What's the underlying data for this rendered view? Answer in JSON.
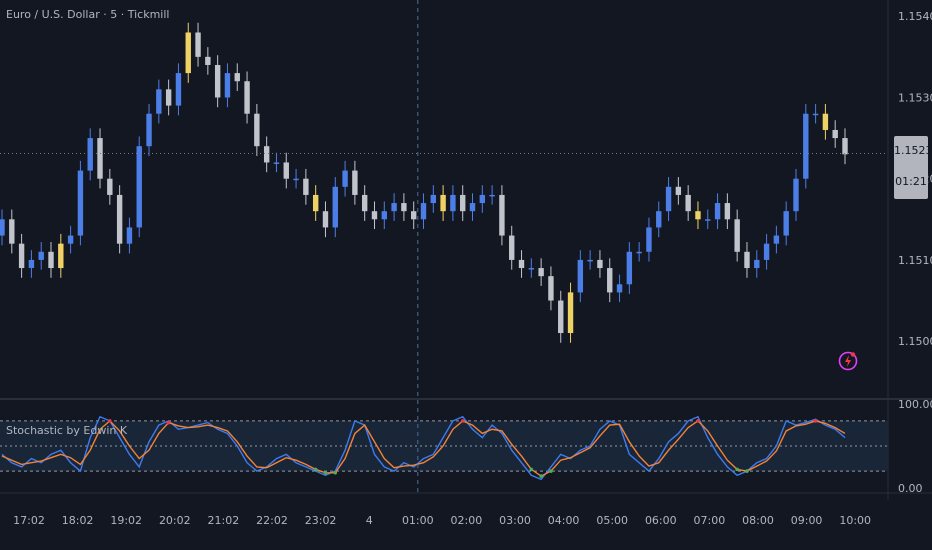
{
  "header": {
    "symbol_title": "Euro / U.S. Dollar · 5 · Tickmill"
  },
  "indicator": {
    "title": "Stochastic by Edwin K"
  },
  "last_price": {
    "value": "1.15231",
    "countdown": "01:21"
  },
  "colors": {
    "background": "#131722",
    "candle_up": "#4c7ee8",
    "candle_down": "#c2c4cc",
    "candle_highlight": "#f0d264",
    "stoch_k": "#3d7bf0",
    "stoch_d": "#f58235",
    "stoch_overbought": "#f23645",
    "stoch_oversold": "#4caf50",
    "band_fill": "#1c2b3f",
    "alert": "#e040fb"
  },
  "chart_data": [
    {
      "type": "candlestick",
      "title": "Euro / U.S. Dollar · 5 · Tickmill",
      "y_ticks": [
        "1.15400",
        "1.15300",
        "1.15200",
        "1.15100",
        "1.15000"
      ],
      "ylim": [
        1.1493,
        1.1542
      ],
      "x_ticks": [
        "17:02",
        "18:02",
        "19:02",
        "20:02",
        "21:02",
        "22:02",
        "23:02",
        "4",
        "01:00",
        "02:00",
        "03:00",
        "04:00",
        "05:00",
        "06:00",
        "07:00",
        "08:00",
        "09:00",
        "10:00"
      ],
      "close_series": [
        1.1515,
        1.1512,
        1.1509,
        1.151,
        1.1511,
        1.1509,
        1.1512,
        1.1513,
        1.1521,
        1.1525,
        1.152,
        1.1518,
        1.1512,
        1.1514,
        1.1524,
        1.1528,
        1.1531,
        1.1529,
        1.1533,
        1.1538,
        1.1535,
        1.1534,
        1.153,
        1.1533,
        1.1532,
        1.1528,
        1.1524,
        1.1522,
        1.1522,
        1.152,
        1.152,
        1.1518,
        1.1516,
        1.1514,
        1.1519,
        1.1521,
        1.1518,
        1.1516,
        1.1515,
        1.1516,
        1.1517,
        1.1516,
        1.1515,
        1.1517,
        1.1518,
        1.1516,
        1.1518,
        1.1516,
        1.1517,
        1.1518,
        1.1518,
        1.1513,
        1.151,
        1.1509,
        1.1509,
        1.1508,
        1.1505,
        1.1501,
        1.1506,
        1.151,
        1.151,
        1.1509,
        1.1506,
        1.1507,
        1.1511,
        1.1511,
        1.1514,
        1.1516,
        1.1519,
        1.1518,
        1.1516,
        1.1515,
        1.1515,
        1.1517,
        1.1515,
        1.1511,
        1.1509,
        1.151,
        1.1512,
        1.1513,
        1.1516,
        1.152,
        1.1528,
        1.1528,
        1.1526,
        1.1525,
        1.1523
      ],
      "last_price": 1.15231,
      "current_time_marker": "01:00"
    },
    {
      "type": "line",
      "title": "Stochastic by Edwin K",
      "y_ticks": [
        "100.00",
        "0.00"
      ],
      "ylim": [
        -5,
        105
      ],
      "bands": {
        "upper": 80,
        "middle": 50,
        "lower": 20
      },
      "series": [
        {
          "name": "%K",
          "values": [
            40,
            30,
            25,
            35,
            30,
            40,
            45,
            30,
            20,
            60,
            85,
            80,
            60,
            40,
            25,
            55,
            75,
            80,
            70,
            72,
            75,
            78,
            70,
            65,
            50,
            30,
            20,
            25,
            35,
            40,
            30,
            25,
            20,
            15,
            20,
            45,
            80,
            75,
            40,
            25,
            20,
            30,
            25,
            35,
            40,
            60,
            80,
            85,
            70,
            60,
            75,
            65,
            45,
            30,
            15,
            10,
            25,
            40,
            35,
            45,
            50,
            70,
            80,
            75,
            40,
            30,
            20,
            35,
            55,
            65,
            80,
            85,
            60,
            40,
            25,
            15,
            20,
            30,
            35,
            50,
            80,
            75,
            78,
            82,
            75,
            70,
            60
          ]
        },
        {
          "name": "%D",
          "values": [
            38,
            33,
            28,
            30,
            32,
            36,
            40,
            36,
            28,
            45,
            70,
            80,
            68,
            50,
            35,
            45,
            65,
            78,
            74,
            72,
            73,
            75,
            72,
            68,
            55,
            38,
            25,
            24,
            30,
            36,
            33,
            28,
            22,
            18,
            18,
            35,
            65,
            75,
            55,
            35,
            24,
            26,
            27,
            30,
            37,
            50,
            70,
            80,
            75,
            65,
            70,
            68,
            52,
            38,
            22,
            14,
            20,
            33,
            36,
            42,
            48,
            62,
            75,
            76,
            55,
            38,
            26,
            30,
            45,
            58,
            72,
            80,
            68,
            50,
            33,
            22,
            20,
            26,
            32,
            44,
            68,
            74,
            76,
            80,
            77,
            72,
            65
          ]
        }
      ]
    }
  ]
}
